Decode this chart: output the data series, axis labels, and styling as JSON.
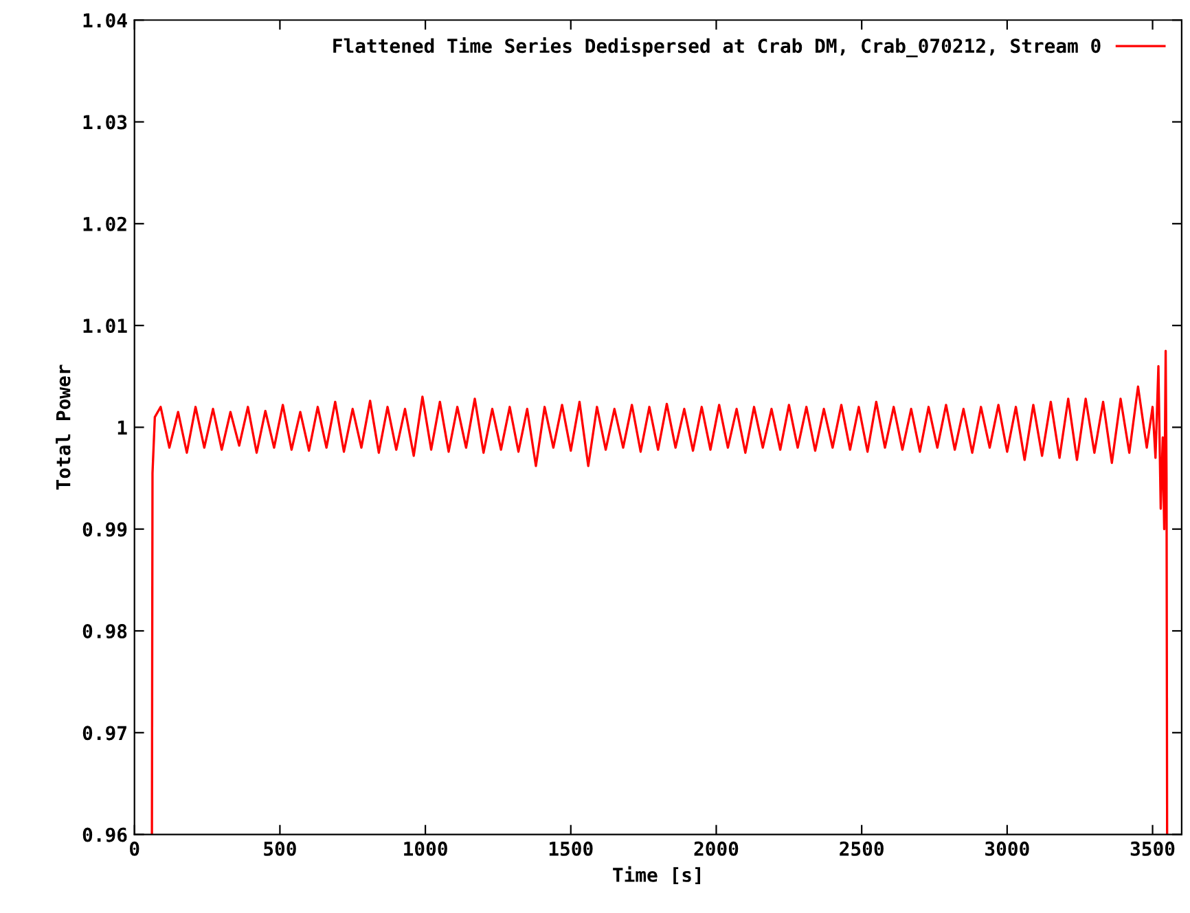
{
  "chart_data": {
    "type": "line",
    "xlabel": "Time [s]",
    "ylabel": "Total Power",
    "xlim": [
      0,
      3600
    ],
    "xticks": [
      0,
      500,
      1000,
      1500,
      2000,
      2500,
      3000,
      3500
    ],
    "ylim": [
      0.96,
      1.04
    ],
    "yticks": [
      {
        "value": 0.96,
        "label": "0.96"
      },
      {
        "value": 0.97,
        "label": "0.97"
      },
      {
        "value": 0.98,
        "label": "0.98"
      },
      {
        "value": 0.99,
        "label": "0.99"
      },
      {
        "value": 1,
        "label": "1"
      },
      {
        "value": 1.01,
        "label": "1.01"
      },
      {
        "value": 1.02,
        "label": "1.02"
      },
      {
        "value": 1.03,
        "label": "1.03"
      },
      {
        "value": 1.04,
        "label": "1.04"
      }
    ],
    "grid": false,
    "legend": "top right",
    "marker": "none",
    "line_style": "solid",
    "series": [
      {
        "name": "Flattened Time Series Dedispersed at Crab DM, Crab_070212, Stream 0",
        "color": "#ff0000",
        "x": [
          60,
          62,
          70,
          90,
          120,
          150,
          180,
          210,
          240,
          270,
          300,
          330,
          360,
          390,
          420,
          450,
          480,
          510,
          540,
          570,
          600,
          630,
          660,
          690,
          720,
          750,
          780,
          810,
          840,
          870,
          900,
          930,
          960,
          990,
          1020,
          1050,
          1080,
          1110,
          1140,
          1170,
          1200,
          1230,
          1260,
          1290,
          1320,
          1350,
          1380,
          1410,
          1440,
          1470,
          1500,
          1530,
          1560,
          1590,
          1620,
          1650,
          1680,
          1710,
          1740,
          1770,
          1800,
          1830,
          1860,
          1890,
          1920,
          1950,
          1980,
          2010,
          2040,
          2070,
          2100,
          2130,
          2160,
          2190,
          2220,
          2250,
          2280,
          2310,
          2340,
          2370,
          2400,
          2430,
          2460,
          2490,
          2520,
          2550,
          2580,
          2610,
          2640,
          2670,
          2700,
          2730,
          2760,
          2790,
          2820,
          2850,
          2880,
          2910,
          2940,
          2970,
          3000,
          3030,
          3060,
          3090,
          3120,
          3150,
          3180,
          3210,
          3240,
          3270,
          3300,
          3330,
          3360,
          3390,
          3420,
          3450,
          3480,
          3500,
          3510,
          3520,
          3528,
          3535,
          3540,
          3545,
          3548,
          3550
        ],
        "values": [
          0.96,
          0.9955,
          1.001,
          1.002,
          0.998,
          1.0015,
          0.9975,
          1.002,
          0.998,
          1.0018,
          0.9978,
          1.0015,
          0.9982,
          1.002,
          0.9975,
          1.0016,
          0.998,
          1.0022,
          0.9978,
          1.0015,
          0.9977,
          1.002,
          0.998,
          1.0025,
          0.9976,
          1.0018,
          0.998,
          1.0026,
          0.9975,
          1.002,
          0.9978,
          1.0018,
          0.9972,
          1.003,
          0.9978,
          1.0025,
          0.9976,
          1.002,
          0.998,
          1.0028,
          0.9975,
          1.0018,
          0.9978,
          1.002,
          0.9976,
          1.0018,
          0.9962,
          1.002,
          0.998,
          1.0022,
          0.9977,
          1.0025,
          0.9962,
          1.002,
          0.9978,
          1.0018,
          0.998,
          1.0022,
          0.9976,
          1.002,
          0.9978,
          1.0023,
          0.998,
          1.0018,
          0.9977,
          1.002,
          0.9978,
          1.0022,
          0.998,
          1.0018,
          0.9975,
          1.002,
          0.998,
          1.0018,
          0.9978,
          1.0022,
          0.998,
          1.002,
          0.9977,
          1.0018,
          0.998,
          1.0022,
          0.9978,
          1.002,
          0.9976,
          1.0025,
          0.998,
          1.002,
          0.9978,
          1.0018,
          0.9976,
          1.002,
          0.998,
          1.0022,
          0.9978,
          1.0018,
          0.9975,
          1.002,
          0.998,
          1.0022,
          0.9976,
          1.002,
          0.9968,
          1.0022,
          0.9972,
          1.0025,
          0.997,
          1.0028,
          0.9968,
          1.0028,
          0.9975,
          1.0025,
          0.9965,
          1.0028,
          0.9975,
          1.004,
          0.998,
          1.002,
          0.997,
          1.006,
          0.992,
          0.999,
          0.99,
          1.0075,
          0.995,
          0.96
        ]
      }
    ]
  }
}
